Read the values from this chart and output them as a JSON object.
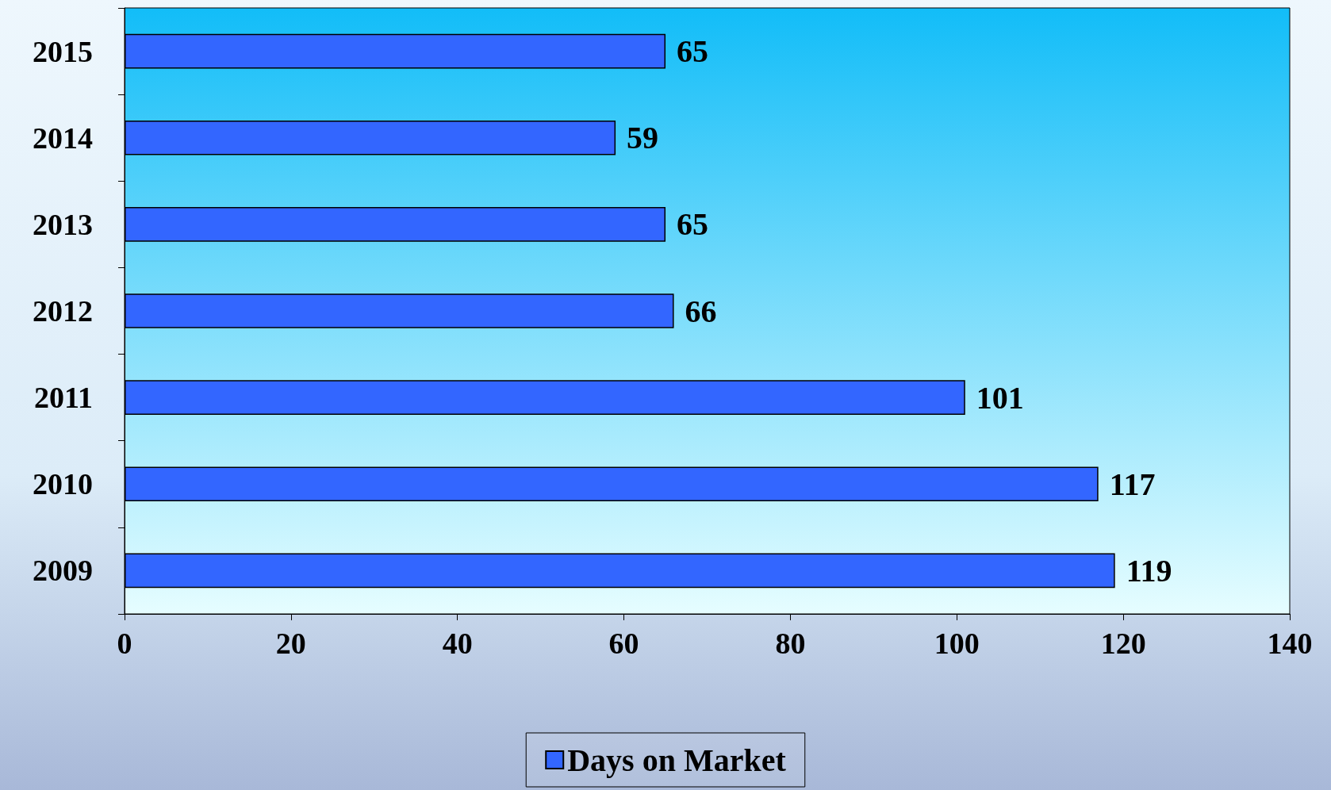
{
  "chart_data": {
    "type": "bar",
    "orientation": "horizontal",
    "categories": [
      "2015",
      "2014",
      "2013",
      "2012",
      "2011",
      "2010",
      "2009"
    ],
    "series": [
      {
        "name": "Days on Market",
        "color": "#3366ff",
        "values": [
          65,
          59,
          65,
          66,
          101,
          117,
          119
        ]
      }
    ],
    "xlim": [
      0,
      140
    ],
    "xticks": [
      0,
      20,
      40,
      60,
      80,
      100,
      120,
      140
    ],
    "data_labels": true,
    "grid": false,
    "legend": "bottom"
  }
}
